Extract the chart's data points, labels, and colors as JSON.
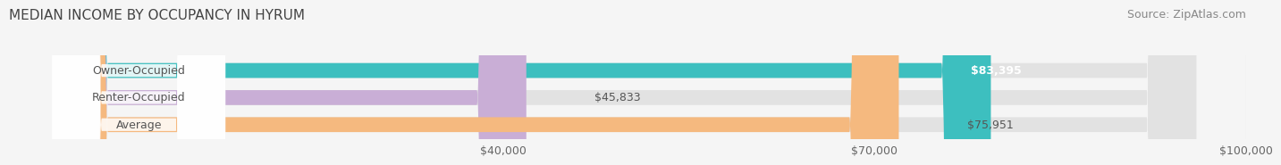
{
  "title": "MEDIAN INCOME BY OCCUPANCY IN HYRUM",
  "source": "Source: ZipAtlas.com",
  "categories": [
    "Owner-Occupied",
    "Renter-Occupied",
    "Average"
  ],
  "values": [
    83395,
    45833,
    75951
  ],
  "bar_colors": [
    "#3dbfbf",
    "#c9aed6",
    "#f5b97f"
  ],
  "bar_labels": [
    "$83,395",
    "$45,833",
    "$75,951"
  ],
  "label_inside": [
    true,
    false,
    false
  ],
  "xlim": [
    0,
    100000
  ],
  "xticks": [
    0,
    40000,
    70000,
    100000
  ],
  "xtick_labels": [
    "",
    "$40,000",
    "$70,000",
    "$100,000"
  ],
  "background_color": "#f5f5f5",
  "bar_background_color": "#e2e2e2",
  "title_fontsize": 11,
  "source_fontsize": 9,
  "label_fontsize": 9,
  "category_fontsize": 9
}
